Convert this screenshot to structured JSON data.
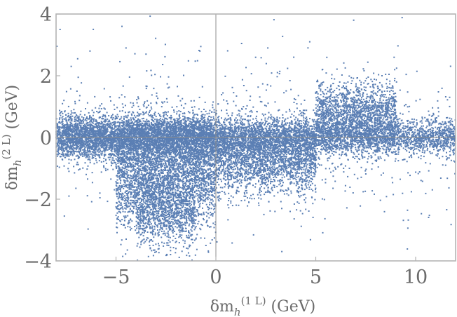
{
  "chart_data": {
    "type": "scatter",
    "title": "",
    "xlabel": "δm_h^(1 L) (GeV)",
    "ylabel": "δm_h^(2 L) (GeV)",
    "xlim": [
      -8,
      12
    ],
    "ylim": [
      -4,
      4
    ],
    "x_ticks": [
      -5,
      0,
      5,
      10
    ],
    "y_ticks": [
      -4,
      -2,
      0,
      2,
      4
    ],
    "x_tick_labels": [
      "−5",
      "0",
      "5",
      "10"
    ],
    "y_tick_labels": [
      "−4",
      "−2",
      "0",
      "2",
      "4"
    ],
    "zero_lines": true,
    "grid": false,
    "legend": "none",
    "point_color": "#5b7fb4",
    "series": [
      {
        "name": "",
        "clusters": [
          {
            "x_range": [
              -8,
              0
            ],
            "y_center": 0.0,
            "y_spread": 0.35,
            "count": 5200
          },
          {
            "x_range": [
              -5,
              0
            ],
            "y_center": -1.2,
            "y_spread": 0.85,
            "count": 3200
          },
          {
            "x_range": [
              -4,
              -1
            ],
            "y_center": -2.4,
            "y_spread": 0.55,
            "count": 900
          },
          {
            "x_range": [
              0,
              5
            ],
            "y_center": -0.6,
            "y_spread": 0.6,
            "count": 2600
          },
          {
            "x_range": [
              0,
              12
            ],
            "y_center": 0.0,
            "y_spread": 0.3,
            "count": 3400
          },
          {
            "x_range": [
              5,
              9
            ],
            "y_center": 0.7,
            "y_spread": 0.55,
            "count": 1800
          },
          {
            "x_range": [
              -8,
              12
            ],
            "y_center": 0.0,
            "y_spread": 1.5,
            "count": 700
          }
        ],
        "outliers": [
          {
            "x": -7.8,
            "y": 3.5
          },
          {
            "x": -6.3,
            "y": 2.8
          },
          {
            "x": -4.7,
            "y": 3.6
          },
          {
            "x": -4.5,
            "y": 2.9
          },
          {
            "x": -3.5,
            "y": 2.7
          },
          {
            "x": -0.8,
            "y": 2.8
          },
          {
            "x": 2.6,
            "y": 2.9
          },
          {
            "x": 3.9,
            "y": 2.6
          },
          {
            "x": 4.7,
            "y": 3.1
          },
          {
            "x": 6.9,
            "y": 3.8
          },
          {
            "x": 11.7,
            "y": 1.3
          },
          {
            "x": 11.5,
            "y": -0.9
          },
          {
            "x": -2.0,
            "y": -3.6
          },
          {
            "x": -0.5,
            "y": -3.5
          }
        ]
      }
    ]
  }
}
